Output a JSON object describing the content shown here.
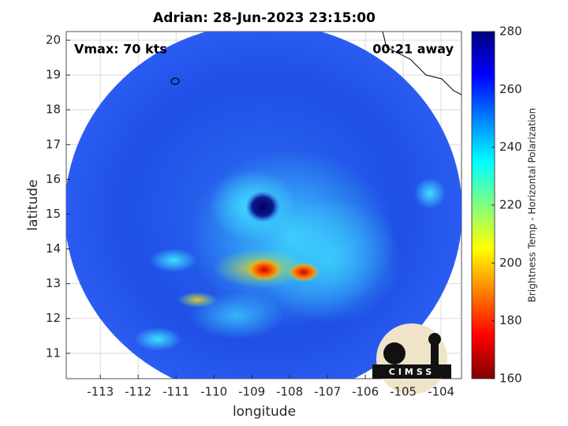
{
  "title": "Adrian: 28-Jun-2023 23:15:00",
  "annotations": {
    "vmax": "Vmax: 70 kts",
    "time_offset": "00:21 away"
  },
  "map": {
    "xlabel": "longitude",
    "ylabel": "latitude",
    "xlim": [
      -113.9,
      -103.46
    ],
    "ylim": [
      10.27,
      20.25
    ],
    "xticks": [
      -113,
      -112,
      -111,
      -110,
      -109,
      -108,
      -107,
      -106,
      -105,
      -104
    ],
    "yticks": [
      11,
      12,
      13,
      14,
      15,
      16,
      17,
      18,
      19,
      20
    ],
    "grid": true
  },
  "colorbar": {
    "label": "Brightness Temp - Horizontal Polarization",
    "lim": [
      160,
      280
    ],
    "ticks": [
      160,
      180,
      200,
      220,
      240,
      260,
      280
    ],
    "colormap": "jet"
  },
  "logo": "CIMSS"
}
